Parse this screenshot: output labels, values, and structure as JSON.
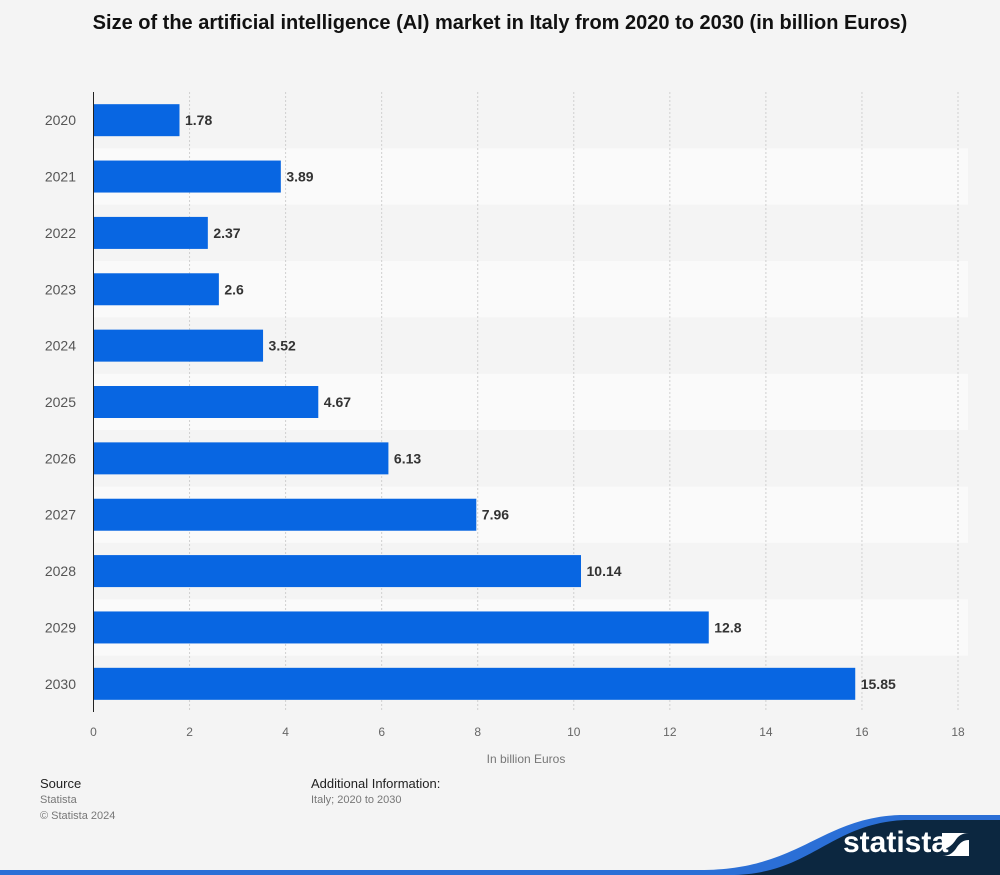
{
  "chart_data": {
    "type": "bar",
    "orientation": "horizontal",
    "title": "Size of the artificial intelligence (AI) market in Italy from 2020 to 2030 (in billion Euros)",
    "xlabel": "In billion Euros",
    "ylabel": "",
    "categories": [
      "2020",
      "2021",
      "2022",
      "2023",
      "2024",
      "2025",
      "2026",
      "2027",
      "2028",
      "2029",
      "2030"
    ],
    "values": [
      1.78,
      3.89,
      2.37,
      2.6,
      3.52,
      4.67,
      6.13,
      7.96,
      10.14,
      12.8,
      15.85
    ],
    "value_labels": [
      "1.78",
      "3.89",
      "2.37",
      "2.6",
      "3.52",
      "4.67",
      "6.13",
      "7.96",
      "10.14",
      "12.8",
      "15.85"
    ],
    "xlim": [
      0,
      18
    ],
    "xticks": [
      0,
      2,
      4,
      6,
      8,
      10,
      12,
      14,
      16,
      18
    ],
    "grid": true,
    "bar_color": "#0866e2",
    "legend": "none"
  },
  "footer": {
    "source_label": "Source",
    "source_value": "Statista",
    "copyright": "© Statista 2024",
    "additional_label": "Additional Information:",
    "additional_value": "Italy; 2020 to 2030",
    "brand": "statista"
  }
}
